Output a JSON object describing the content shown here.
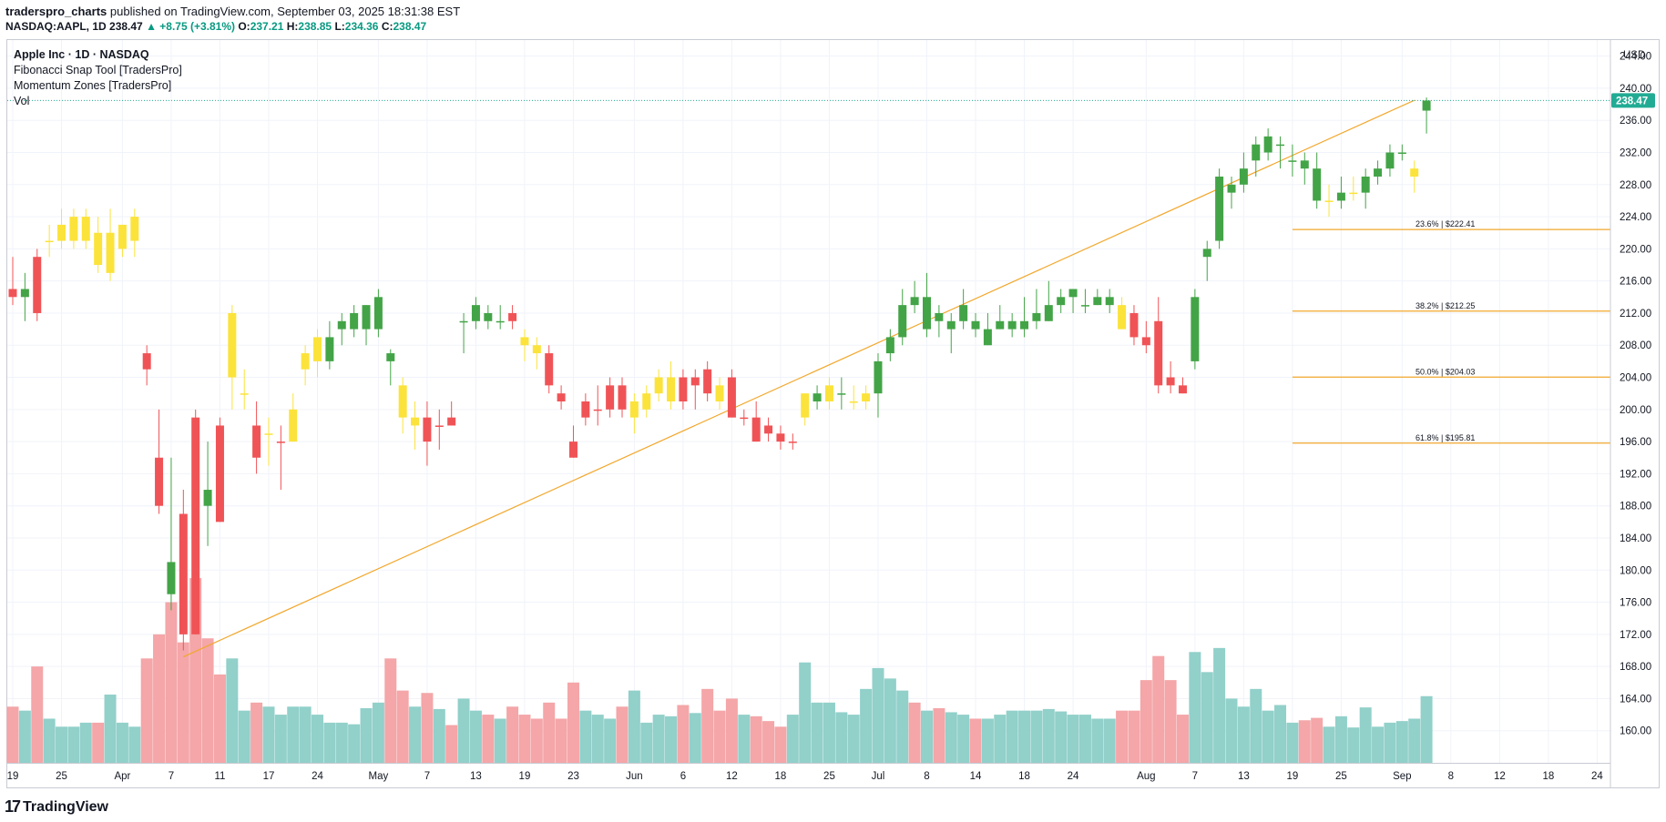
{
  "header": {
    "author": "traderspro_charts",
    "published": "published on TradingView.com, September 03, 2025 18:31:38 EST",
    "symbol_line": "NASDAQ:AAPL, 1D",
    "last": "238.47",
    "change": "▲ +8.75 (+3.81%)",
    "o_label": "O:",
    "o": "237.21",
    "h_label": "H:",
    "h": "238.85",
    "l_label": "L:",
    "l": "234.36",
    "c_label": "C:",
    "c": "238.47"
  },
  "legend": {
    "title": "Apple Inc · 1D · NASDAQ",
    "indicators": [
      "Fibonacci Snap Tool [TradersPro]",
      "Momentum Zones [TradersPro]",
      "Vol"
    ]
  },
  "currency": "USD",
  "price_tag": "238.47",
  "footer": {
    "brand": "TradingView",
    "mark": "17"
  },
  "colors": {
    "green": "#43a447",
    "red": "#f05356",
    "yellow": "#fbe33b",
    "vol_up": "#92d0ca",
    "vol_down": "#f4a6a8",
    "fib": "#f2a72b",
    "tag": "#22ab94"
  },
  "chart_data": {
    "type": "candlestick",
    "ylim": [
      156,
      246
    ],
    "y_ticks": [
      160,
      164,
      168,
      172,
      176,
      180,
      184,
      188,
      192,
      196,
      200,
      204,
      208,
      212,
      216,
      220,
      224,
      228,
      232,
      236,
      240,
      244
    ],
    "x_ticks": [
      {
        "i": 0,
        "label": "19"
      },
      {
        "i": 4,
        "label": "25"
      },
      {
        "i": 9,
        "label": "Apr"
      },
      {
        "i": 13,
        "label": "7"
      },
      {
        "i": 17,
        "label": "11"
      },
      {
        "i": 21,
        "label": "17"
      },
      {
        "i": 25,
        "label": "24"
      },
      {
        "i": 30,
        "label": "May"
      },
      {
        "i": 34,
        "label": "7"
      },
      {
        "i": 38,
        "label": "13"
      },
      {
        "i": 42,
        "label": "19"
      },
      {
        "i": 46,
        "label": "23"
      },
      {
        "i": 51,
        "label": "Jun"
      },
      {
        "i": 55,
        "label": "6"
      },
      {
        "i": 59,
        "label": "12"
      },
      {
        "i": 63,
        "label": "18"
      },
      {
        "i": 67,
        "label": "25"
      },
      {
        "i": 71,
        "label": "Jul"
      },
      {
        "i": 75,
        "label": "8"
      },
      {
        "i": 79,
        "label": "14"
      },
      {
        "i": 83,
        "label": "18"
      },
      {
        "i": 87,
        "label": "24"
      },
      {
        "i": 93,
        "label": "Aug"
      },
      {
        "i": 97,
        "label": "7"
      },
      {
        "i": 101,
        "label": "13"
      },
      {
        "i": 105,
        "label": "19"
      },
      {
        "i": 109,
        "label": "25"
      },
      {
        "i": 114,
        "label": "Sep"
      },
      {
        "i": 118,
        "label": "8"
      },
      {
        "i": 122,
        "label": "12"
      },
      {
        "i": 126,
        "label": "18"
      },
      {
        "i": 130,
        "label": "24"
      }
    ],
    "candles": [
      {
        "o": 215,
        "h": 219,
        "l": 213,
        "c": 214,
        "v": 163,
        "z": "red"
      },
      {
        "o": 214,
        "h": 217,
        "l": 211,
        "c": 215,
        "v": 162.5,
        "z": "green"
      },
      {
        "o": 219,
        "h": 220,
        "l": 211,
        "c": 212,
        "v": 168,
        "z": "red"
      },
      {
        "o": 221,
        "h": 223,
        "l": 219,
        "c": 221,
        "v": 161.5,
        "z": "yellow"
      },
      {
        "o": 221,
        "h": 225,
        "l": 220,
        "c": 223,
        "v": 160.5,
        "z": "yellow"
      },
      {
        "o": 221,
        "h": 225,
        "l": 220,
        "c": 224,
        "v": 160.5,
        "z": "yellow"
      },
      {
        "o": 221,
        "h": 225,
        "l": 220,
        "c": 224,
        "v": 161,
        "z": "yellow"
      },
      {
        "o": 222,
        "h": 224,
        "l": 217,
        "c": 218,
        "v": 161,
        "z": "yellow"
      },
      {
        "o": 217,
        "h": 225,
        "l": 216,
        "c": 222,
        "v": 164.5,
        "z": "yellow"
      },
      {
        "o": 220,
        "h": 223,
        "l": 219,
        "c": 223,
        "v": 161,
        "z": "yellow"
      },
      {
        "o": 221,
        "h": 225,
        "l": 219,
        "c": 224,
        "v": 160.5,
        "z": "yellow"
      },
      {
        "o": 207,
        "h": 208,
        "l": 203,
        "c": 205,
        "v": 169,
        "z": "red"
      },
      {
        "o": 194,
        "h": 200,
        "l": 187,
        "c": 188,
        "v": 172,
        "z": "red"
      },
      {
        "o": 181,
        "h": 194,
        "l": 175,
        "c": 177,
        "v": 176,
        "z": "green"
      },
      {
        "o": 187,
        "h": 190,
        "l": 170,
        "c": 172,
        "v": 171,
        "z": "red"
      },
      {
        "o": 199,
        "h": 200,
        "l": 172,
        "c": 172,
        "v": 179,
        "z": "red"
      },
      {
        "o": 190,
        "h": 196,
        "l": 183,
        "c": 188,
        "v": 171.5,
        "z": "green"
      },
      {
        "o": 198,
        "h": 199,
        "l": 186,
        "c": 186,
        "v": 167,
        "z": "red"
      },
      {
        "o": 204,
        "h": 213,
        "l": 200,
        "c": 212,
        "v": 169,
        "z": "yellow"
      },
      {
        "o": 202,
        "h": 205,
        "l": 200,
        "c": 202,
        "v": 162.5,
        "z": "yellow"
      },
      {
        "o": 198,
        "h": 201,
        "l": 192,
        "c": 194,
        "v": 163.5,
        "z": "red"
      },
      {
        "o": 197,
        "h": 199,
        "l": 193,
        "c": 197,
        "v": 163,
        "z": "yellow"
      },
      {
        "o": 196,
        "h": 198,
        "l": 190,
        "c": 196,
        "v": 162,
        "z": "red"
      },
      {
        "o": 196,
        "h": 202,
        "l": 196,
        "c": 200,
        "v": 163,
        "z": "yellow"
      },
      {
        "o": 205,
        "h": 208,
        "l": 203,
        "c": 207,
        "v": 163,
        "z": "yellow"
      },
      {
        "o": 206,
        "h": 210,
        "l": 204,
        "c": 209,
        "v": 162,
        "z": "yellow"
      },
      {
        "o": 206,
        "h": 211,
        "l": 205,
        "c": 209,
        "v": 161,
        "z": "green"
      },
      {
        "o": 210,
        "h": 212,
        "l": 208,
        "c": 211,
        "v": 161,
        "z": "green"
      },
      {
        "o": 210,
        "h": 213,
        "l": 209,
        "c": 212,
        "v": 160.8,
        "z": "green"
      },
      {
        "o": 210,
        "h": 213,
        "l": 208,
        "c": 213,
        "v": 162.8,
        "z": "green"
      },
      {
        "o": 210,
        "h": 215,
        "l": 209,
        "c": 214,
        "v": 163.5,
        "z": "green"
      },
      {
        "o": 207,
        "h": 207.5,
        "l": 203,
        "c": 206,
        "v": 169,
        "z": "green"
      },
      {
        "o": 203,
        "h": 204,
        "l": 197,
        "c": 199,
        "v": 165,
        "z": "yellow"
      },
      {
        "o": 198,
        "h": 201,
        "l": 195,
        "c": 199,
        "v": 163,
        "z": "yellow"
      },
      {
        "o": 199,
        "h": 201,
        "l": 193,
        "c": 196,
        "v": 164.7,
        "z": "red"
      },
      {
        "o": 198,
        "h": 200,
        "l": 195,
        "c": 198,
        "v": 162.7,
        "z": "red"
      },
      {
        "o": 199,
        "h": 201,
        "l": 198,
        "c": 198,
        "v": 160.7,
        "z": "red"
      },
      {
        "o": 211,
        "h": 212,
        "l": 207,
        "c": 211,
        "v": 164,
        "z": "green"
      },
      {
        "o": 211,
        "h": 214,
        "l": 210,
        "c": 213,
        "v": 162.5,
        "z": "green"
      },
      {
        "o": 212,
        "h": 213,
        "l": 210,
        "c": 211,
        "v": 162,
        "z": "green"
      },
      {
        "o": 211,
        "h": 213,
        "l": 210,
        "c": 211,
        "v": 161.5,
        "z": "green"
      },
      {
        "o": 212,
        "h": 213,
        "l": 210,
        "c": 211,
        "v": 163,
        "z": "red"
      },
      {
        "o": 209,
        "h": 210,
        "l": 206,
        "c": 208,
        "v": 162,
        "z": "yellow"
      },
      {
        "o": 208,
        "h": 209,
        "l": 205,
        "c": 207,
        "v": 161.5,
        "z": "yellow"
      },
      {
        "o": 207,
        "h": 208,
        "l": 202,
        "c": 203,
        "v": 163.5,
        "z": "red"
      },
      {
        "o": 202,
        "h": 203,
        "l": 200,
        "c": 201,
        "v": 161.5,
        "z": "red"
      },
      {
        "o": 196,
        "h": 198,
        "l": 194,
        "c": 194,
        "v": 166,
        "z": "red"
      },
      {
        "o": 199,
        "h": 202,
        "l": 198,
        "c": 201,
        "v": 162.5,
        "z": "red"
      },
      {
        "o": 200,
        "h": 203,
        "l": 198,
        "c": 200,
        "v": 162,
        "z": "red"
      },
      {
        "o": 200,
        "h": 204,
        "l": 199,
        "c": 203,
        "v": 161.5,
        "z": "red"
      },
      {
        "o": 203,
        "h": 204,
        "l": 199,
        "c": 200,
        "v": 163,
        "z": "red"
      },
      {
        "o": 199,
        "h": 202,
        "l": 197,
        "c": 201,
        "v": 165,
        "z": "yellow"
      },
      {
        "o": 200,
        "h": 203,
        "l": 199,
        "c": 202,
        "v": 161,
        "z": "yellow"
      },
      {
        "o": 202,
        "h": 205,
        "l": 201,
        "c": 204,
        "v": 162,
        "z": "yellow"
      },
      {
        "o": 201,
        "h": 206,
        "l": 200,
        "c": 204,
        "v": 161.8,
        "z": "yellow"
      },
      {
        "o": 204,
        "h": 205,
        "l": 200,
        "c": 201,
        "v": 163.2,
        "z": "red"
      },
      {
        "o": 203,
        "h": 205,
        "l": 200,
        "c": 204,
        "v": 162.2,
        "z": "red"
      },
      {
        "o": 205,
        "h": 206,
        "l": 201,
        "c": 202,
        "v": 165.2,
        "z": "red"
      },
      {
        "o": 203,
        "h": 204,
        "l": 200,
        "c": 201,
        "v": 162.5,
        "z": "yellow"
      },
      {
        "o": 204,
        "h": 205,
        "l": 199,
        "c": 199,
        "v": 164,
        "z": "red"
      },
      {
        "o": 199,
        "h": 200,
        "l": 198,
        "c": 199,
        "v": 162,
        "z": "red"
      },
      {
        "o": 199,
        "h": 201,
        "l": 196,
        "c": 196,
        "v": 161.8,
        "z": "red"
      },
      {
        "o": 198,
        "h": 199,
        "l": 196,
        "c": 197,
        "v": 161.2,
        "z": "red"
      },
      {
        "o": 197,
        "h": 198,
        "l": 195,
        "c": 196,
        "v": 160.5,
        "z": "red"
      },
      {
        "o": 196,
        "h": 197,
        "l": 195,
        "c": 196,
        "v": 162,
        "z": "red"
      },
      {
        "o": 199,
        "h": 202,
        "l": 198,
        "c": 202,
        "v": 168.5,
        "z": "yellow"
      },
      {
        "o": 201,
        "h": 203,
        "l": 200,
        "c": 202,
        "v": 163.5,
        "z": "green"
      },
      {
        "o": 201,
        "h": 204,
        "l": 200,
        "c": 203,
        "v": 163.5,
        "z": "yellow"
      },
      {
        "o": 202,
        "h": 204,
        "l": 200,
        "c": 202,
        "v": 162.3,
        "z": "green"
      },
      {
        "o": 201,
        "h": 203,
        "l": 200,
        "c": 201,
        "v": 162,
        "z": "yellow"
      },
      {
        "o": 201,
        "h": 203,
        "l": 200,
        "c": 202,
        "v": 165.2,
        "z": "yellow"
      },
      {
        "o": 202,
        "h": 207,
        "l": 199,
        "c": 206,
        "v": 167.8,
        "z": "green"
      },
      {
        "o": 207,
        "h": 210,
        "l": 206,
        "c": 209,
        "v": 166.5,
        "z": "green"
      },
      {
        "o": 209,
        "h": 215,
        "l": 208,
        "c": 213,
        "v": 165,
        "z": "green"
      },
      {
        "o": 214,
        "h": 216,
        "l": 212,
        "c": 213,
        "v": 163.5,
        "z": "green"
      },
      {
        "o": 210,
        "h": 217,
        "l": 209,
        "c": 214,
        "v": 162.5,
        "z": "green"
      },
      {
        "o": 212,
        "h": 213,
        "l": 209,
        "c": 211,
        "v": 162.8,
        "z": "green"
      },
      {
        "o": 210,
        "h": 212,
        "l": 207,
        "c": 211,
        "v": 162.3,
        "z": "green"
      },
      {
        "o": 211,
        "h": 215,
        "l": 210,
        "c": 213,
        "v": 162,
        "z": "green"
      },
      {
        "o": 211,
        "h": 212,
        "l": 209,
        "c": 210,
        "v": 161.5,
        "z": "green"
      },
      {
        "o": 208,
        "h": 212,
        "l": 208,
        "c": 210,
        "v": 161.5,
        "z": "green"
      },
      {
        "o": 210,
        "h": 213,
        "l": 210,
        "c": 211,
        "v": 162,
        "z": "green"
      },
      {
        "o": 210,
        "h": 212,
        "l": 209,
        "c": 211,
        "v": 162.5,
        "z": "green"
      },
      {
        "o": 210,
        "h": 214,
        "l": 209,
        "c": 211,
        "v": 162.5,
        "z": "green"
      },
      {
        "o": 211,
        "h": 215,
        "l": 210,
        "c": 212,
        "v": 162.5,
        "z": "green"
      },
      {
        "o": 211,
        "h": 216,
        "l": 211,
        "c": 213,
        "v": 162.7,
        "z": "green"
      },
      {
        "o": 213,
        "h": 215,
        "l": 212,
        "c": 214,
        "v": 162.4,
        "z": "green"
      },
      {
        "o": 214,
        "h": 215,
        "l": 212,
        "c": 215,
        "v": 162,
        "z": "green"
      },
      {
        "o": 213,
        "h": 215,
        "l": 212,
        "c": 213,
        "v": 162,
        "z": "green"
      },
      {
        "o": 213,
        "h": 215,
        "l": 213,
        "c": 214,
        "v": 161.5,
        "z": "green"
      },
      {
        "o": 213,
        "h": 215,
        "l": 212,
        "c": 214,
        "v": 161.5,
        "z": "green"
      },
      {
        "o": 213,
        "h": 214,
        "l": 210,
        "c": 210,
        "v": 162.5,
        "z": "yellow"
      },
      {
        "o": 212,
        "h": 213,
        "l": 208,
        "c": 209,
        "v": 162.5,
        "z": "red"
      },
      {
        "o": 209,
        "h": 211,
        "l": 207,
        "c": 208,
        "v": 166.3,
        "z": "red"
      },
      {
        "o": 211,
        "h": 214,
        "l": 202,
        "c": 203,
        "v": 169.3,
        "z": "red"
      },
      {
        "o": 204,
        "h": 206,
        "l": 202,
        "c": 203,
        "v": 166.3,
        "z": "red"
      },
      {
        "o": 203,
        "h": 204,
        "l": 202,
        "c": 202,
        "v": 162,
        "z": "red"
      },
      {
        "o": 206,
        "h": 215,
        "l": 205,
        "c": 214,
        "v": 169.8,
        "z": "green"
      },
      {
        "o": 219,
        "h": 221,
        "l": 216,
        "c": 220,
        "v": 167.3,
        "z": "green"
      },
      {
        "o": 221,
        "h": 230,
        "l": 220,
        "c": 229,
        "v": 170.3,
        "z": "green"
      },
      {
        "o": 227,
        "h": 229,
        "l": 225,
        "c": 228,
        "v": 164,
        "z": "green"
      },
      {
        "o": 228,
        "h": 232,
        "l": 227,
        "c": 230,
        "v": 163,
        "z": "green"
      },
      {
        "o": 231,
        "h": 234,
        "l": 229,
        "c": 233,
        "v": 165.2,
        "z": "green"
      },
      {
        "o": 232,
        "h": 235,
        "l": 231,
        "c": 234,
        "v": 162.5,
        "z": "green"
      },
      {
        "o": 233,
        "h": 234,
        "l": 230,
        "c": 233,
        "v": 163.2,
        "z": "green"
      },
      {
        "o": 231,
        "h": 233,
        "l": 229,
        "c": 231,
        "v": 161,
        "z": "green"
      },
      {
        "o": 231,
        "h": 232,
        "l": 228,
        "c": 230,
        "v": 161.3,
        "z": "green"
      },
      {
        "o": 230,
        "h": 232,
        "l": 225,
        "c": 226,
        "v": 161.6,
        "z": "green"
      },
      {
        "o": 226,
        "h": 228,
        "l": 224,
        "c": 226,
        "v": 160.5,
        "z": "yellow"
      },
      {
        "o": 226,
        "h": 229,
        "l": 225,
        "c": 227,
        "v": 161.8,
        "z": "green"
      },
      {
        "o": 227,
        "h": 229,
        "l": 226,
        "c": 227,
        "v": 160.4,
        "z": "yellow"
      },
      {
        "o": 227,
        "h": 230,
        "l": 225,
        "c": 229,
        "v": 162.9,
        "z": "green"
      },
      {
        "o": 229,
        "h": 231,
        "l": 228,
        "c": 230,
        "v": 160.5,
        "z": "green"
      },
      {
        "o": 230,
        "h": 233,
        "l": 229,
        "c": 232,
        "v": 161,
        "z": "green"
      },
      {
        "o": 232,
        "h": 233,
        "l": 231,
        "c": 232,
        "v": 161.2,
        "z": "green"
      },
      {
        "o": 229,
        "h": 231,
        "l": 227,
        "c": 230,
        "v": 161.5,
        "z": "yellow"
      },
      {
        "o": 237.21,
        "h": 238.85,
        "l": 234.36,
        "c": 238.47,
        "v": 164.3,
        "z": "green"
      }
    ],
    "trendline": {
      "from": {
        "i": 14,
        "price": 169.2
      },
      "to": {
        "i": 115,
        "price": 238.5
      }
    },
    "fib_levels": [
      {
        "label": "23.6% | $222.41",
        "price": 222.41
      },
      {
        "label": "38.2% | $212.25",
        "price": 212.25
      },
      {
        "label": "50.0% | $204.03",
        "price": 204.03
      },
      {
        "label": "61.8% | $195.81",
        "price": 195.81
      }
    ],
    "fib_start_i": 105,
    "last_price": 238.47
  }
}
